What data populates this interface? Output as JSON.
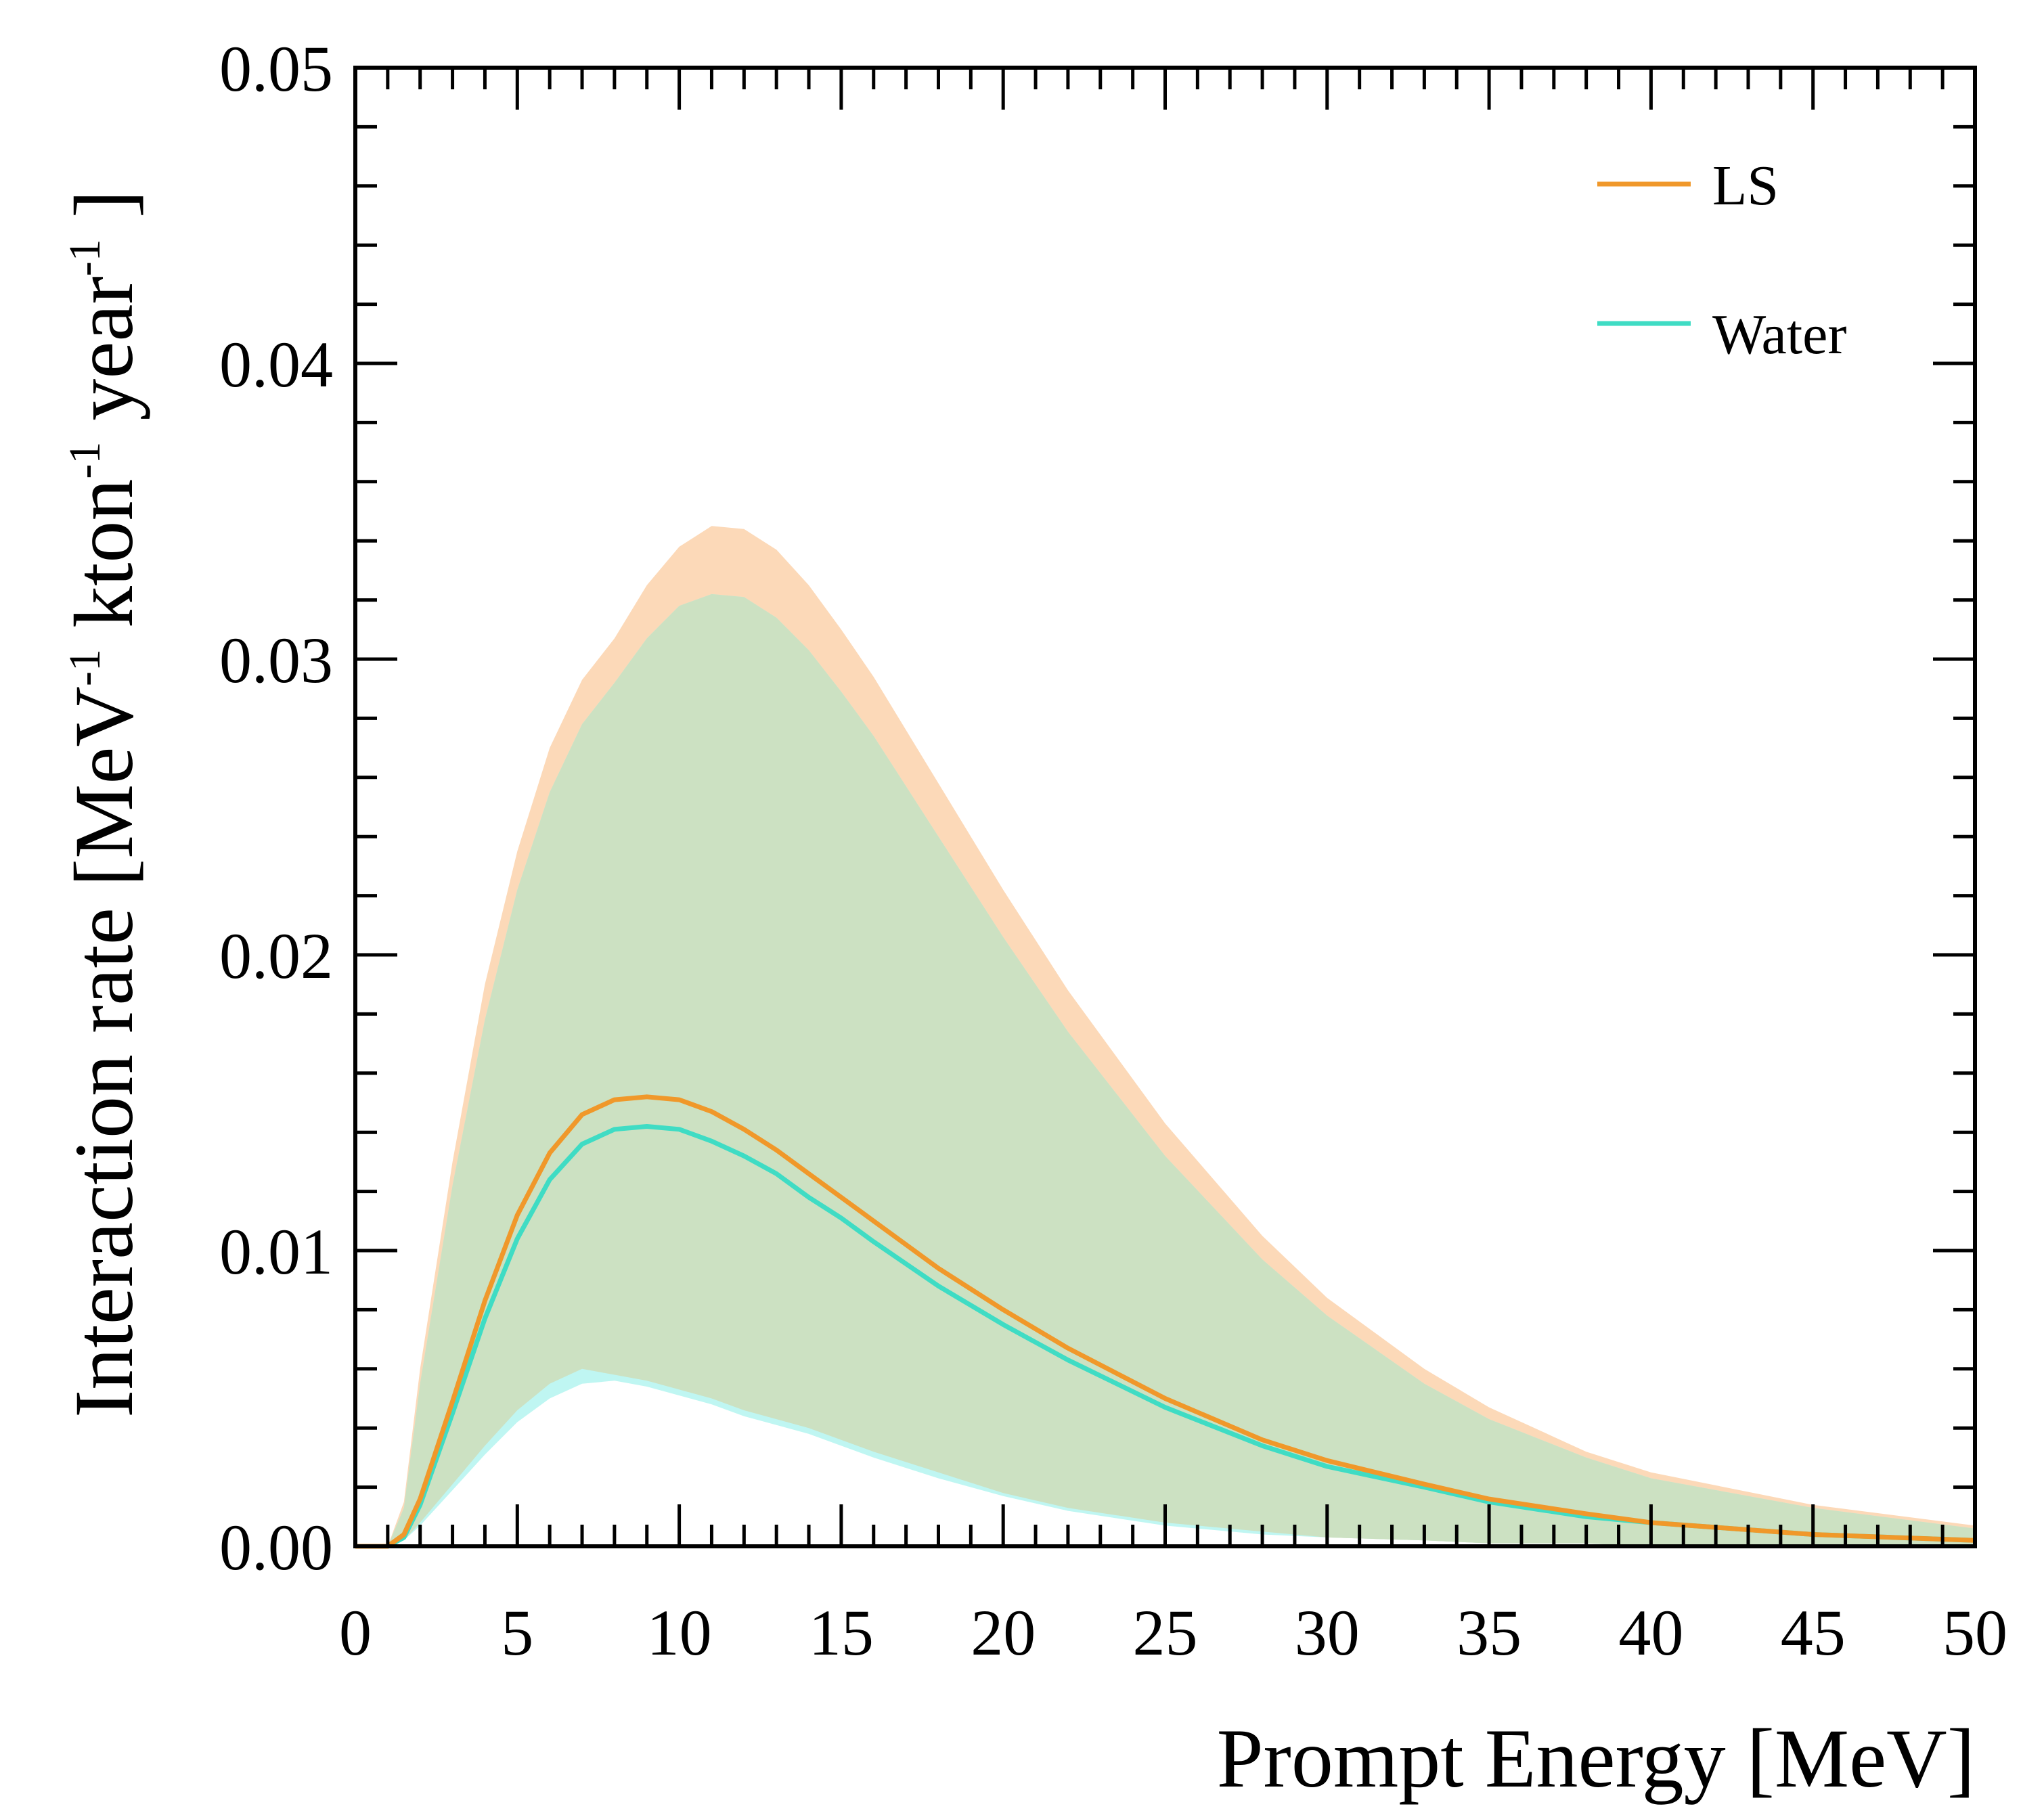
{
  "chart_data": {
    "type": "line",
    "xlabel": "Prompt Energy [MeV]",
    "ylabel": {
      "main": "Interaction rate [MeV",
      "sup1": "-1",
      "mid": " kton",
      "sup2": "-1",
      "mid2": " year",
      "sup3": "-1",
      "end": " ]"
    },
    "xlim": [
      0,
      50
    ],
    "ylim": [
      0,
      0.05
    ],
    "xticks": [
      "0",
      "5",
      "10",
      "15",
      "20",
      "25",
      "30",
      "35",
      "40",
      "45",
      "50"
    ],
    "yticks": [
      "0.00",
      "0.01",
      "0.02",
      "0.03",
      "0.04",
      "0.05"
    ],
    "legend": {
      "position": "top-right",
      "entries": [
        "LS",
        "Water"
      ]
    },
    "x": [
      0,
      1,
      1.5,
      2,
      3,
      4,
      5,
      6,
      7,
      8,
      9,
      10,
      11,
      12,
      13,
      14,
      15,
      16,
      18,
      20,
      22,
      25,
      28,
      30,
      33,
      35,
      38,
      40,
      45,
      50
    ],
    "series": [
      {
        "name": "LS",
        "color": "#f0982a",
        "values": [
          0,
          0,
          0.0004,
          0.0016,
          0.0049,
          0.0083,
          0.0112,
          0.0133,
          0.0146,
          0.0151,
          0.0152,
          0.0151,
          0.0147,
          0.0141,
          0.0134,
          0.0126,
          0.0118,
          0.011,
          0.0094,
          0.008,
          0.0067,
          0.005,
          0.0036,
          0.0029,
          0.0021,
          0.0016,
          0.0011,
          0.0008,
          0.0004,
          0.0002
        ]
      },
      {
        "name": "Water",
        "color": "#3fdcc4",
        "values": [
          0,
          0,
          0.0003,
          0.0014,
          0.0045,
          0.0077,
          0.0104,
          0.0124,
          0.0136,
          0.0141,
          0.0142,
          0.0141,
          0.0137,
          0.0132,
          0.0126,
          0.0118,
          0.0111,
          0.0103,
          0.0088,
          0.0075,
          0.0063,
          0.0047,
          0.0034,
          0.0027,
          0.002,
          0.0015,
          0.001,
          0.0008,
          0.0004,
          0.0002
        ]
      }
    ],
    "bands": [
      {
        "name": "LS band",
        "color": "#fcd9b8",
        "lower": [
          0,
          0,
          0.0002,
          0.0008,
          0.0021,
          0.0034,
          0.0046,
          0.0055,
          0.006,
          0.0058,
          0.0056,
          0.0053,
          0.005,
          0.0046,
          0.0043,
          0.004,
          0.0036,
          0.0032,
          0.0025,
          0.0018,
          0.0013,
          0.0008,
          0.0005,
          0.0003,
          0.0002,
          0.0001,
          0.0001,
          0.0,
          0.0,
          0.0
        ],
        "upper": [
          0,
          0,
          0.0015,
          0.006,
          0.013,
          0.019,
          0.0235,
          0.027,
          0.0293,
          0.0307,
          0.0325,
          0.0338,
          0.0345,
          0.0344,
          0.0337,
          0.0325,
          0.031,
          0.0294,
          0.0258,
          0.0222,
          0.0188,
          0.0143,
          0.0105,
          0.0084,
          0.006,
          0.0047,
          0.0032,
          0.0025,
          0.0014,
          0.0007
        ]
      },
      {
        "name": "Water band",
        "color": "#bff6f2",
        "lower": [
          0,
          0,
          0.0002,
          0.0007,
          0.0019,
          0.0031,
          0.0042,
          0.005,
          0.0055,
          0.0056,
          0.0054,
          0.0051,
          0.0048,
          0.0044,
          0.0041,
          0.0038,
          0.0034,
          0.003,
          0.0023,
          0.0017,
          0.0012,
          0.0007,
          0.0004,
          0.0003,
          0.0002,
          0.0001,
          0.0001,
          0.0,
          0.0,
          0.0
        ],
        "upper": [
          0,
          0,
          0.0013,
          0.0055,
          0.0122,
          0.0178,
          0.0222,
          0.0255,
          0.0278,
          0.0292,
          0.0307,
          0.0318,
          0.0322,
          0.0321,
          0.0314,
          0.0303,
          0.0289,
          0.0274,
          0.024,
          0.0206,
          0.0174,
          0.0132,
          0.0097,
          0.0078,
          0.0055,
          0.0043,
          0.003,
          0.0023,
          0.0013,
          0.0006
        ]
      }
    ],
    "overlap_color": "#cce1c2"
  }
}
